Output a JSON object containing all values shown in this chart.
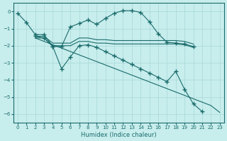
{
  "xlabel": "Humidex (Indice chaleur)",
  "background_color": "#c8eded",
  "grid_color": "#a8d8d8",
  "line_color": "#1a6b6b",
  "xlim": [
    -0.5,
    23.5
  ],
  "ylim": [
    -6.5,
    0.5
  ],
  "xticks": [
    0,
    1,
    2,
    3,
    4,
    5,
    6,
    7,
    8,
    9,
    10,
    11,
    12,
    13,
    14,
    15,
    16,
    17,
    18,
    19,
    20,
    21,
    22,
    23
  ],
  "yticks": [
    0,
    -1,
    -2,
    -3,
    -4,
    -5,
    -6
  ],
  "lines": [
    {
      "x": [
        0,
        1,
        2,
        3,
        4,
        5,
        6,
        7,
        8,
        9,
        10,
        11,
        12,
        13,
        14,
        15,
        16,
        17,
        18,
        19,
        20
      ],
      "y": [
        -0.1,
        -0.65,
        -1.35,
        -1.35,
        -2.05,
        -2.05,
        -0.9,
        -0.7,
        -0.5,
        -0.75,
        -0.4,
        -0.1,
        0.05,
        0.05,
        -0.05,
        -0.6,
        -1.3,
        -1.8,
        -1.85,
        -1.9,
        -2.05
      ],
      "has_markers": true
    },
    {
      "x": [
        2,
        3,
        4,
        5,
        6,
        7,
        8,
        9,
        10,
        11,
        12,
        13,
        14,
        15,
        16,
        17,
        18,
        19,
        20
      ],
      "y": [
        -1.45,
        -1.45,
        -1.85,
        -1.85,
        -1.85,
        -1.55,
        -1.55,
        -1.65,
        -1.65,
        -1.7,
        -1.7,
        -1.7,
        -1.7,
        -1.7,
        -1.7,
        -1.7,
        -1.7,
        -1.75,
        -1.9
      ],
      "has_markers": false
    },
    {
      "x": [
        2,
        3,
        4,
        5,
        6,
        7,
        8,
        9,
        10,
        11,
        12,
        13,
        14,
        15,
        16,
        17,
        18,
        19,
        20
      ],
      "y": [
        -1.55,
        -1.55,
        -2.0,
        -2.0,
        -2.0,
        -1.75,
        -1.75,
        -1.85,
        -1.85,
        -1.9,
        -1.9,
        -1.9,
        -1.9,
        -1.9,
        -1.9,
        -1.9,
        -1.9,
        -1.95,
        -2.1
      ],
      "has_markers": false
    },
    {
      "x": [
        2,
        3,
        4,
        5,
        6,
        7,
        8,
        9,
        10,
        11,
        12,
        13,
        14,
        15,
        16,
        17,
        18,
        19,
        20,
        21,
        22,
        23
      ],
      "y": [
        -1.45,
        -1.55,
        -2.05,
        -3.35,
        -2.65,
        -2.0,
        -1.95,
        -2.1,
        -2.35,
        -2.6,
        -2.85,
        -3.1,
        -3.35,
        -3.6,
        -3.85,
        -4.1,
        -3.5,
        -4.55,
        -5.4,
        -5.85,
        null,
        null
      ],
      "has_markers": true
    },
    {
      "x": [
        2,
        22,
        23
      ],
      "y": [
        -1.55,
        -5.5,
        -5.9
      ],
      "has_markers": false
    }
  ]
}
